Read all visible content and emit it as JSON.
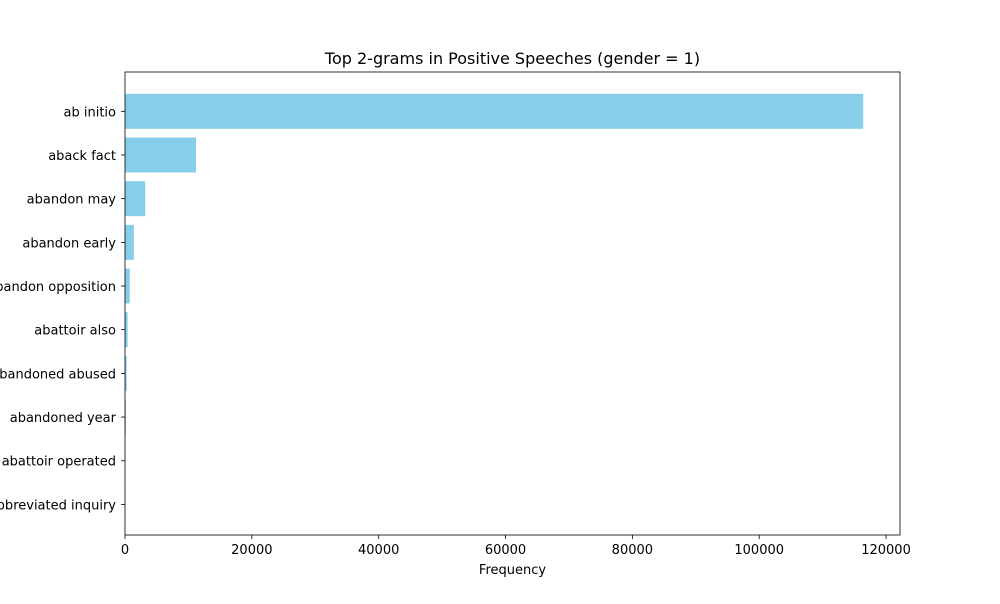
{
  "chart_data": {
    "type": "bar",
    "orientation": "horizontal",
    "title": "Top 2-grams in Positive Speeches (gender = 1)",
    "xlabel": "Frequency",
    "ylabel": "",
    "categories": [
      "ab initio",
      "aback fact",
      "abandon may",
      "abandon early",
      "abandon opposition",
      "abattoir also",
      "abandoned abused",
      "abandoned year",
      "abattoir operated",
      "abbreviated inquiry"
    ],
    "values": [
      116400,
      11200,
      3200,
      1400,
      750,
      420,
      250,
      130,
      60,
      20
    ],
    "xlim": [
      0,
      122200
    ],
    "xticks": [
      0,
      20000,
      40000,
      60000,
      80000,
      100000,
      120000
    ],
    "xtick_labels": [
      "0",
      "20000",
      "40000",
      "60000",
      "80000",
      "100000",
      "120000"
    ],
    "bar_color": "#87ceeb",
    "grid": false,
    "legend": "none"
  }
}
